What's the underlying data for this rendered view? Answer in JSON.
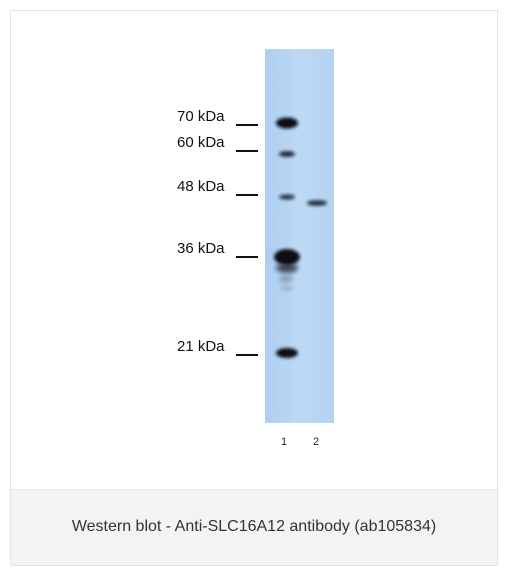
{
  "figure": {
    "caption": "Western blot - Anti-SLC16A12 antibody (ab105834)"
  },
  "blot": {
    "markers": [
      {
        "label": "70 kDa"
      },
      {
        "label": "60 kDa"
      },
      {
        "label": "48 kDa"
      },
      {
        "label": "36 kDa"
      },
      {
        "label": "21 kDa"
      }
    ],
    "lanes": [
      {
        "label": "1"
      },
      {
        "label": "2"
      }
    ],
    "membrane_color": "#b9d7f2"
  }
}
